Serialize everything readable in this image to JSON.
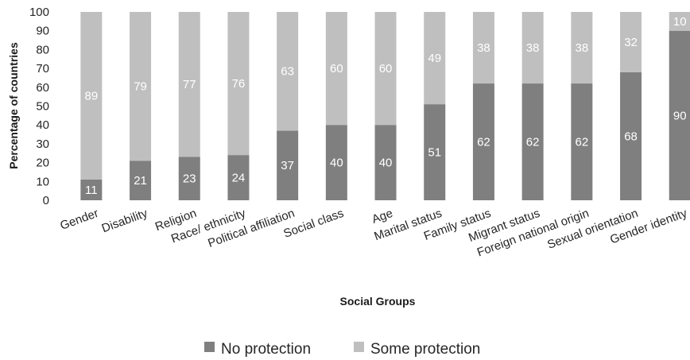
{
  "chart_data": {
    "type": "bar",
    "stacked": true,
    "categories": [
      "Gender",
      "Disability",
      "Religion",
      "Race/ ethnicity",
      "Political affiliation",
      "Social class",
      "Age",
      "Marital status",
      "Family status",
      "Migrant status",
      "Foreign national origin",
      "Sexual orientation",
      "Gender identity"
    ],
    "series": [
      {
        "name": "No protection",
        "color": "#7f7f7f",
        "values": [
          11,
          21,
          23,
          24,
          37,
          40,
          40,
          51,
          62,
          62,
          62,
          68,
          90
        ]
      },
      {
        "name": "Some protection",
        "color": "#bfbfbf",
        "values": [
          89,
          79,
          77,
          76,
          63,
          60,
          60,
          49,
          38,
          38,
          38,
          32,
          10
        ]
      }
    ],
    "title": "",
    "xlabel": "Social Groups",
    "ylabel": "Percentage of countries",
    "ylim": [
      0,
      100
    ],
    "yticks": [
      0,
      10,
      20,
      30,
      40,
      50,
      60,
      70,
      80,
      90,
      100
    ],
    "grid": false,
    "legend_position": "bottom"
  }
}
